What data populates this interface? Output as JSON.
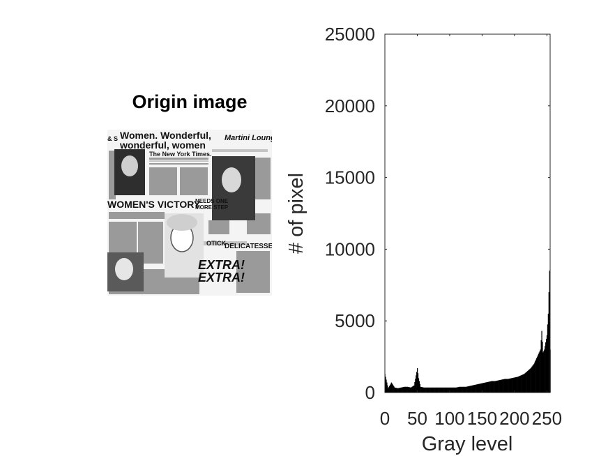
{
  "left_panel": {
    "title": "Origin image",
    "collage_text": {
      "headline_1": "Women. Wonderful,",
      "headline_2": "wonderful, women",
      "masthead": "The New York Times.",
      "top_right": "Martini Lounge",
      "top_left": "& S",
      "victory": "WOMEN'S VICTORY",
      "side_1": "NEEDS ONE",
      "side_2": "MORE STEP",
      "deli": "DELICATESSEN",
      "otick": "OTICK",
      "extra_1": "EXTRA!",
      "extra_2": "EXTRA!"
    }
  },
  "chart_data": {
    "type": "bar",
    "title": "",
    "xlabel": "Gray level",
    "ylabel": "# of pixel",
    "xlim": [
      0,
      255
    ],
    "ylim": [
      0,
      25000
    ],
    "xticks": [
      "0",
      "50",
      "100",
      "150",
      "200",
      "250"
    ],
    "yticks": [
      "0",
      "5000",
      "10000",
      "15000",
      "20000",
      "25000"
    ],
    "grid": false,
    "bar_color": "#000000",
    "x": [
      0,
      5,
      10,
      15,
      20,
      25,
      30,
      35,
      40,
      45,
      48,
      50,
      52,
      55,
      60,
      65,
      70,
      75,
      80,
      85,
      90,
      95,
      100,
      105,
      110,
      115,
      120,
      125,
      130,
      135,
      140,
      145,
      150,
      155,
      160,
      165,
      170,
      175,
      180,
      185,
      190,
      195,
      200,
      205,
      210,
      215,
      220,
      225,
      230,
      235,
      240,
      242,
      244,
      246,
      248,
      250,
      252,
      254,
      255
    ],
    "values": [
      1300,
      300,
      700,
      350,
      300,
      350,
      400,
      400,
      350,
      500,
      1200,
      1700,
      1000,
      400,
      350,
      350,
      350,
      350,
      350,
      350,
      350,
      350,
      350,
      350,
      350,
      400,
      400,
      400,
      450,
      500,
      550,
      600,
      650,
      700,
      750,
      800,
      800,
      850,
      900,
      950,
      950,
      1000,
      1050,
      1100,
      1200,
      1300,
      1500,
      1700,
      2000,
      2500,
      3000,
      4300,
      2800,
      3000,
      3500,
      4000,
      5500,
      8500,
      3000
    ]
  }
}
